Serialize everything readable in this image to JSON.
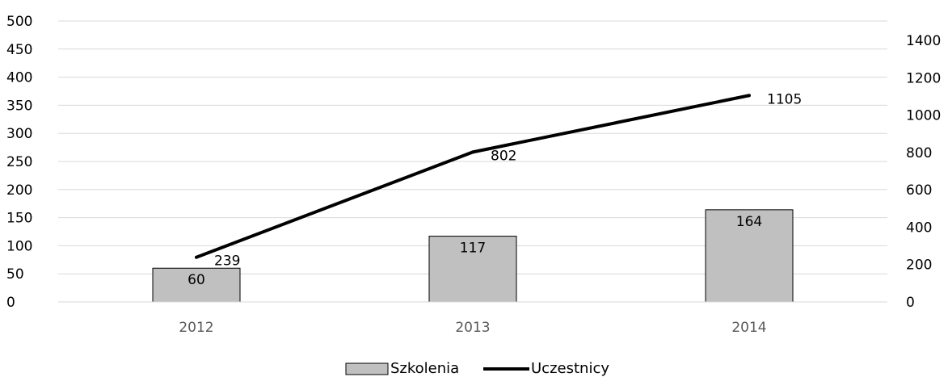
{
  "chart_data": {
    "type": "bar",
    "categories": [
      "2012",
      "2013",
      "2014"
    ],
    "series": [
      {
        "name": "Szkolenia",
        "type": "bar",
        "axis": "left",
        "values": [
          60,
          117,
          164
        ],
        "labels": [
          "60",
          "117",
          "164"
        ],
        "color": "#c0c0c0"
      },
      {
        "name": "Uczestnicy",
        "type": "line",
        "axis": "right",
        "values": [
          239,
          802,
          1105
        ],
        "labels": [
          "239",
          "802",
          "1105"
        ],
        "color": "#000000"
      }
    ],
    "left_axis": {
      "ylim": [
        0,
        500
      ],
      "ticks": [
        "0",
        "50",
        "100",
        "150",
        "200",
        "250",
        "300",
        "350",
        "400",
        "450",
        "500"
      ]
    },
    "right_axis": {
      "ylim": [
        0,
        1400
      ],
      "ticks": [
        "0",
        "200",
        "400",
        "600",
        "800",
        "1000",
        "1200",
        "1400"
      ]
    },
    "grid": true,
    "legend": "bottom-center",
    "legend_items": [
      "Szkolenia",
      "Uczestnicy"
    ]
  }
}
